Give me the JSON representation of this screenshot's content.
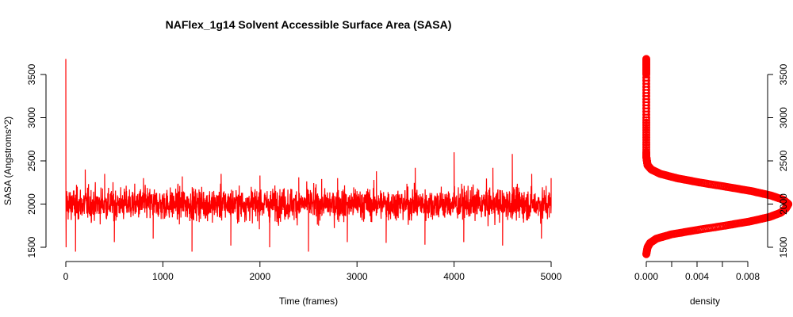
{
  "chart_data": [
    {
      "type": "line",
      "title": "NAFlex_1g14 Solvent Accessible Surface Area (SASA)",
      "xlabel": "Time (frames)",
      "ylabel": "SASA (Angstroms^2)",
      "xlim": [
        0,
        5000
      ],
      "ylim": [
        1450,
        3700
      ],
      "x_ticks": [
        "0",
        "1000",
        "2000",
        "3000",
        "4000",
        "5000"
      ],
      "y_ticks": [
        "1500",
        "2000",
        "2500",
        "3000",
        "3500"
      ],
      "series": [
        {
          "color": "#ff0000",
          "frames": 5000,
          "x": [
            0,
            1,
            2,
            3,
            10,
            30,
            60,
            100,
            200,
            300,
            400,
            500,
            600,
            700,
            800,
            900,
            1000,
            1100,
            1200,
            1300,
            1400,
            1500,
            1600,
            1700,
            1800,
            1900,
            2000,
            2100,
            2200,
            2300,
            2400,
            2500,
            2600,
            2700,
            2800,
            2900,
            3000,
            3100,
            3200,
            3300,
            3400,
            3500,
            3600,
            3700,
            3800,
            3900,
            4000,
            4100,
            4200,
            4300,
            4400,
            4500,
            4600,
            4700,
            4800,
            4900,
            5000
          ],
          "y": [
            3680,
            2200,
            1800,
            1500,
            2150,
            1900,
            2100,
            1450,
            2400,
            1980,
            2350,
            1560,
            2050,
            1950,
            2300,
            1600,
            2040,
            2000,
            2320,
            1450,
            2200,
            1950,
            2350,
            1520,
            2050,
            2000,
            2330,
            1500,
            2100,
            1980,
            2310,
            1450,
            2050,
            2000,
            2300,
            1560,
            2150,
            1950,
            2380,
            1550,
            2050,
            2000,
            2420,
            1530,
            2100,
            1980,
            2600,
            1560,
            2050,
            2000,
            2420,
            1520,
            2580,
            2000,
            2350,
            1600,
            2300
          ],
          "mean": 2000,
          "noise_range": [
            1450,
            2600
          ]
        }
      ],
      "grid": false,
      "legend": "none"
    },
    {
      "type": "line",
      "xlabel": "density",
      "xlim": [
        0,
        0.011
      ],
      "ylim": [
        1450,
        3700
      ],
      "x_ticks": [
        "0.000",
        "0.004",
        "0.008"
      ],
      "y_ticks": [
        "1500",
        "2000",
        "2500",
        "3000",
        "3500"
      ],
      "series": [
        {
          "color": "#ff0000",
          "y": [
            1420,
            1500,
            1550,
            1600,
            1650,
            1700,
            1750,
            1800,
            1850,
            1900,
            1950,
            2000,
            2050,
            2100,
            2150,
            2200,
            2250,
            2300,
            2350,
            2400,
            2450,
            2500,
            2550,
            2600,
            3000,
            3500,
            3680
          ],
          "x": [
            0.0,
            0.0001,
            0.0003,
            0.0008,
            0.002,
            0.004,
            0.0062,
            0.0082,
            0.0097,
            0.0106,
            0.011,
            0.0112,
            0.0108,
            0.0098,
            0.0083,
            0.0063,
            0.0042,
            0.0024,
            0.0011,
            0.0004,
            0.0001,
            5e-05,
            0.0,
            0.0,
            0.0,
            0.0,
            0.0
          ]
        }
      ],
      "grid": false,
      "legend": "none"
    }
  ]
}
